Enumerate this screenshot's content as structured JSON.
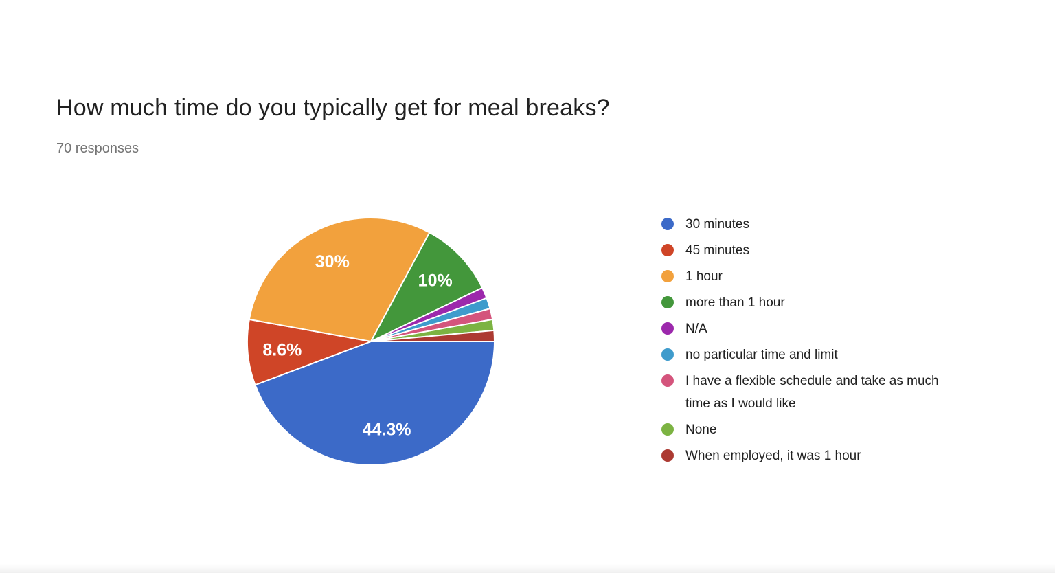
{
  "page": {
    "background_color": "#FFFFFF",
    "title_color": "#212121",
    "subtitle_color": "#757575"
  },
  "header": {
    "title": "How much time do you typically get for meal breaks?",
    "responses_label": "70 responses"
  },
  "chart_data": {
    "type": "pie",
    "title": "How much time do you typically get for meal breaks?",
    "subtitle": "70 responses",
    "total_responses": 70,
    "legend_position": "right",
    "start_angle_clockwise_from_north_deg": 90,
    "slice_label_color": "#FFFFFF",
    "slice_separator_color": "#FFFFFF",
    "slices": [
      {
        "label": "30 minutes",
        "value": 31,
        "percent": 44.3,
        "percent_label": "44.3%",
        "color": "#3C6AC8"
      },
      {
        "label": "45 minutes",
        "value": 6,
        "percent": 8.6,
        "percent_label": "8.6%",
        "color": "#CF4527"
      },
      {
        "label": "1 hour",
        "value": 21,
        "percent": 30,
        "percent_label": "30%",
        "color": "#F2A13D"
      },
      {
        "label": "more than 1 hour",
        "value": 7,
        "percent": 10,
        "percent_label": "10%",
        "color": "#43973B"
      },
      {
        "label": "N/A",
        "value": 1,
        "percent": 1.4,
        "percent_label": "",
        "color": "#9C28AC"
      },
      {
        "label": "no particular time and limit",
        "value": 1,
        "percent": 1.4,
        "percent_label": "",
        "color": "#3E9BCC"
      },
      {
        "label": "I have a flexible schedule and take as much time as I would like",
        "value": 1,
        "percent": 1.4,
        "percent_label": "",
        "color": "#D4547C"
      },
      {
        "label": "None",
        "value": 1,
        "percent": 1.4,
        "percent_label": "",
        "color": "#7CB342"
      },
      {
        "label": "When employed, it was 1 hour",
        "value": 1,
        "percent": 1.4,
        "percent_label": "",
        "color": "#AC3A32"
      }
    ]
  }
}
